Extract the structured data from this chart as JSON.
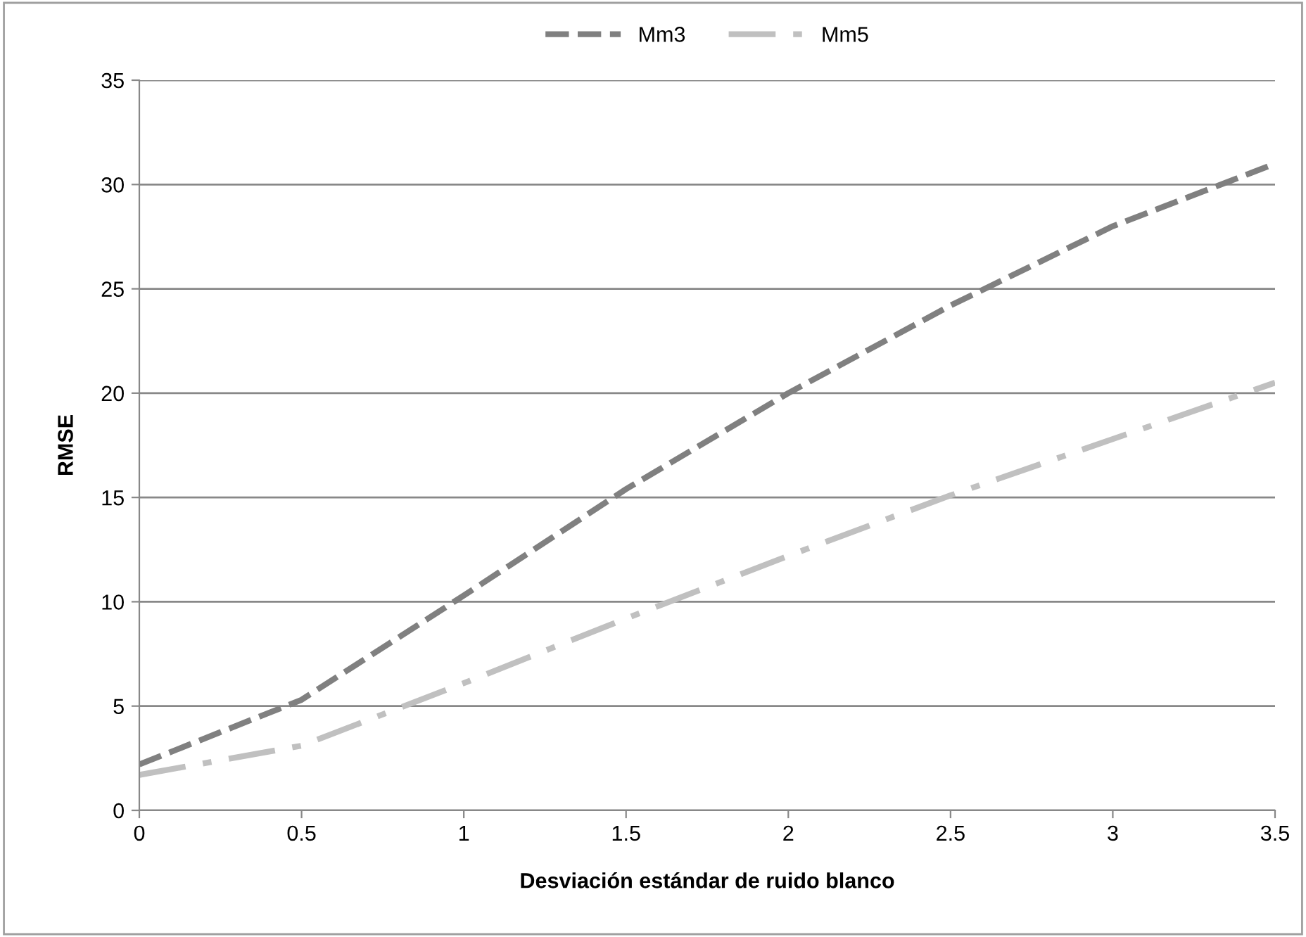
{
  "chart_data": {
    "type": "line",
    "xlabel": "Desviación estándar de ruido blanco",
    "ylabel": "RMSE",
    "x": [
      0,
      0.5,
      1,
      1.5,
      2,
      2.5,
      3,
      3.5
    ],
    "series": [
      {
        "name": "Mm3",
        "color": "#808080",
        "line_style": "dashed",
        "values": [
          2.2,
          5.3,
          10.3,
          15.4,
          20.0,
          24.2,
          28.0,
          31.0
        ]
      },
      {
        "name": "Mm5",
        "color": "#c0c0c0",
        "line_style": "dashdot",
        "values": [
          1.7,
          3.1,
          6.1,
          9.2,
          12.2,
          15.1,
          17.8,
          20.5
        ]
      }
    ],
    "xlim": [
      0,
      3.5
    ],
    "xticks": [
      0,
      0.5,
      1,
      1.5,
      2,
      2.5,
      3,
      3.5
    ],
    "ylim": [
      0,
      35
    ],
    "yticks": [
      0,
      5,
      10,
      15,
      20,
      25,
      30,
      35
    ],
    "grid": "y",
    "legend": "top",
    "marker": "none"
  }
}
